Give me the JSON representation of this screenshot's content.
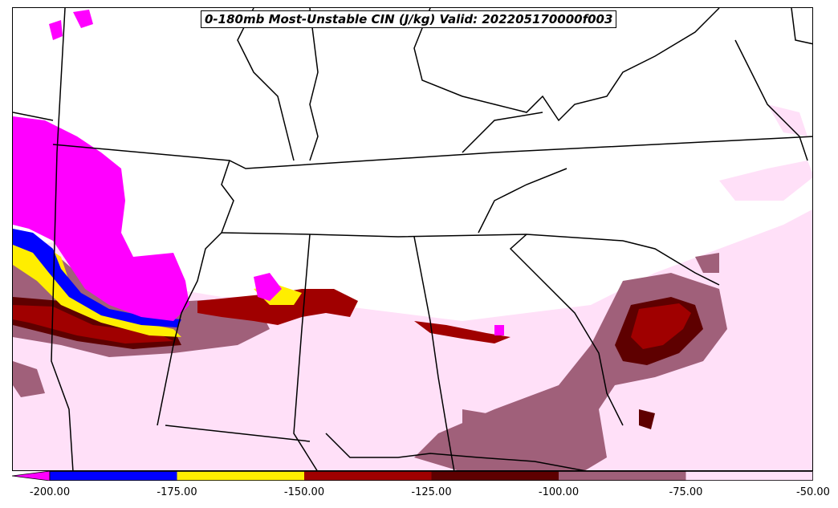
{
  "map": {
    "title": "0-180mb Most-Unstable CIN (J/kg) Valid: 202205170000f003",
    "colorbar": {
      "tick_labels": [
        "-200.00",
        "-175.00",
        "-150.00",
        "-125.00",
        "-100.00",
        "-75.00",
        "-50.00"
      ],
      "bins": [
        {
          "range": "< -200",
          "color": "#ff00ff"
        },
        {
          "range": "-200 to -175",
          "color": "#0000ff"
        },
        {
          "range": "-175 to -150",
          "color": "#ffee00"
        },
        {
          "range": "-150 to -125",
          "color": "#a00000"
        },
        {
          "range": "-125 to -100",
          "color": "#5e0000"
        },
        {
          "range": "-100 to -75",
          "color": "#a0607a"
        },
        {
          "range": "-75 to -50",
          "color": "#ffe0f8"
        }
      ]
    }
  }
}
